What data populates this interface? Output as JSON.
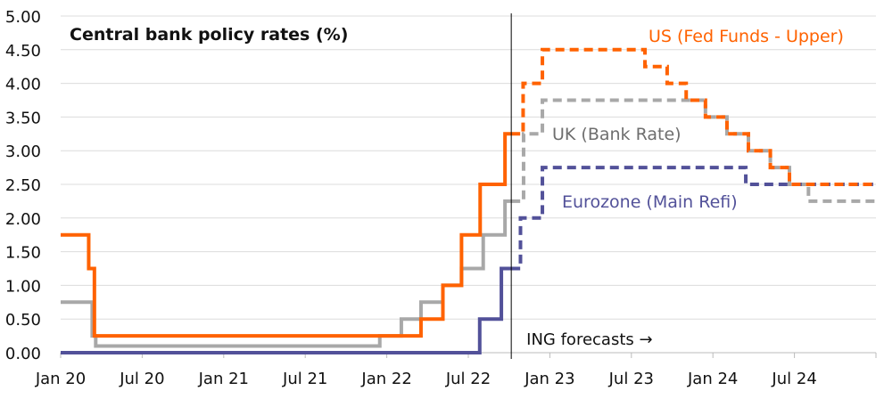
{
  "chart_data": {
    "type": "line",
    "step": true,
    "title": "Central bank policy rates (%)",
    "xlabel": "",
    "ylabel": "",
    "ylim": [
      0,
      5
    ],
    "xlim": [
      "2020-01-01",
      "2025-01-01"
    ],
    "grid": true,
    "y_ticks": [
      "0.00",
      "0.50",
      "1.00",
      "1.50",
      "2.00",
      "2.50",
      "3.00",
      "3.50",
      "4.00",
      "4.50",
      "5.00"
    ],
    "x_ticks": [
      {
        "label": "Jan 20",
        "date": "2020-01-01"
      },
      {
        "label": "Jul 20",
        "date": "2020-07-01"
      },
      {
        "label": "Jan 21",
        "date": "2021-01-01"
      },
      {
        "label": "Jul 21",
        "date": "2021-07-01"
      },
      {
        "label": "Jan 22",
        "date": "2022-01-01"
      },
      {
        "label": "Jul 22",
        "date": "2022-07-01"
      },
      {
        "label": "Jan 23",
        "date": "2023-01-01"
      },
      {
        "label": "Jul 23",
        "date": "2023-07-01"
      },
      {
        "label": "Jan 24",
        "date": "2024-01-01"
      },
      {
        "label": "Jul 24",
        "date": "2024-07-01"
      },
      {
        "label": "",
        "date": "2025-01-01"
      }
    ],
    "forecast_marker": {
      "date": "2022-10-06",
      "label": "ING forecasts →"
    },
    "series": [
      {
        "name": "UK (Bank Rate)",
        "color": "#a8a8a8",
        "label_color": "#6e6e6e",
        "actual": [
          [
            "2020-01-01",
            0.75
          ],
          [
            "2020-03-11",
            0.25
          ],
          [
            "2020-03-19",
            0.1
          ],
          [
            "2021-12-16",
            0.25
          ],
          [
            "2022-02-03",
            0.5
          ],
          [
            "2022-03-17",
            0.75
          ],
          [
            "2022-05-05",
            1.0
          ],
          [
            "2022-06-16",
            1.25
          ],
          [
            "2022-08-04",
            1.75
          ],
          [
            "2022-09-22",
            2.25
          ]
        ],
        "forecast": [
          [
            "2022-10-06",
            2.25
          ],
          [
            "2022-11-03",
            3.25
          ],
          [
            "2022-12-15",
            3.75
          ],
          [
            "2023-12-15",
            3.5
          ],
          [
            "2024-02-02",
            3.25
          ],
          [
            "2024-03-20",
            3.0
          ],
          [
            "2024-05-08",
            2.75
          ],
          [
            "2024-06-20",
            2.5
          ],
          [
            "2024-08-02",
            2.25
          ]
        ]
      },
      {
        "name": "Eurozone (Main Refi)",
        "color": "#525199",
        "label_color": "#525199",
        "actual": [
          [
            "2020-01-01",
            0.0
          ],
          [
            "2022-07-27",
            0.5
          ],
          [
            "2022-09-14",
            1.25
          ]
        ],
        "forecast": [
          [
            "2022-10-06",
            1.25
          ],
          [
            "2022-10-27",
            2.0
          ],
          [
            "2022-12-15",
            2.75
          ],
          [
            "2024-03-14",
            2.5
          ]
        ]
      },
      {
        "name": "US (Fed Funds - Upper)",
        "color": "#ff6200",
        "label_color": "#ff6200",
        "actual": [
          [
            "2020-01-01",
            1.75
          ],
          [
            "2020-03-03",
            1.25
          ],
          [
            "2020-03-16",
            0.25
          ],
          [
            "2022-03-17",
            0.5
          ],
          [
            "2022-05-05",
            1.0
          ],
          [
            "2022-06-16",
            1.75
          ],
          [
            "2022-07-28",
            2.5
          ],
          [
            "2022-09-22",
            3.25
          ]
        ],
        "forecast": [
          [
            "2022-10-06",
            3.25
          ],
          [
            "2022-11-02",
            4.0
          ],
          [
            "2022-12-15",
            4.5
          ],
          [
            "2023-08-01",
            4.25
          ],
          [
            "2023-09-20",
            4.0
          ],
          [
            "2023-11-02",
            3.75
          ],
          [
            "2023-12-15",
            3.5
          ],
          [
            "2024-02-02",
            3.25
          ],
          [
            "2024-03-20",
            3.0
          ],
          [
            "2024-05-08",
            2.75
          ],
          [
            "2024-06-20",
            2.5
          ]
        ]
      }
    ]
  }
}
